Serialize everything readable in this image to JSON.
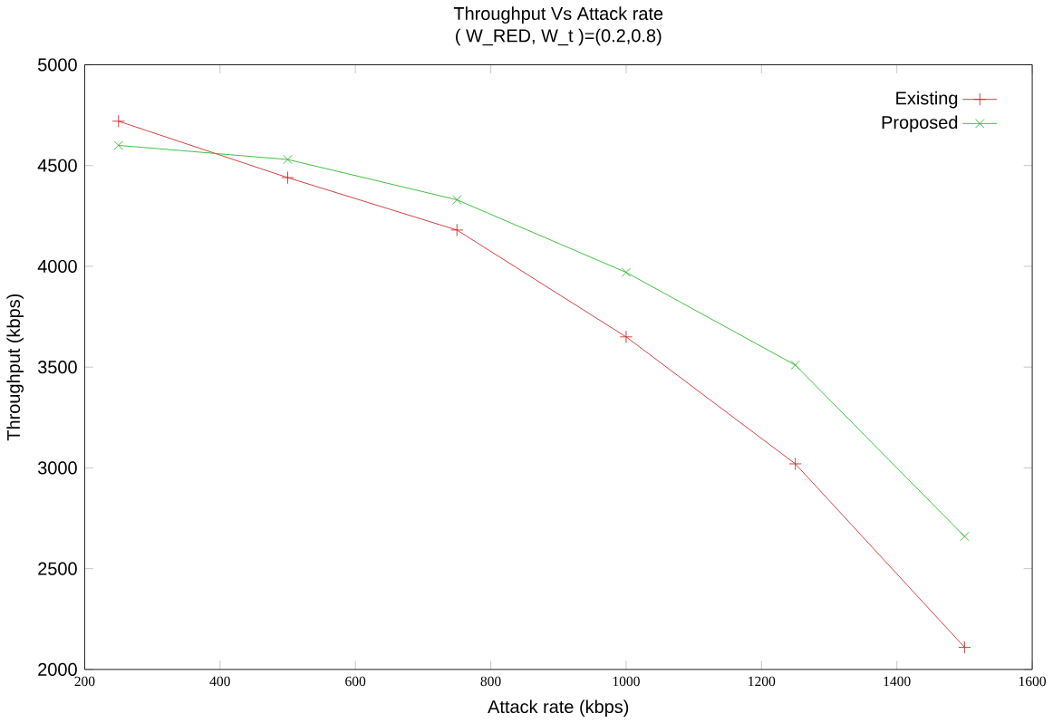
{
  "chart_data": {
    "type": "line",
    "title": "Throughput Vs Attack rate",
    "subtitle": "( W_RED, W_t )=(0.2,0.8)",
    "xlabel": "Attack rate (kbps)",
    "ylabel": "Throughput (kbps)",
    "x": [
      250,
      500,
      750,
      1000,
      1250,
      1500
    ],
    "series": [
      {
        "name": "Existing",
        "color": "#cc2a2a",
        "marker": "cross",
        "values": [
          4720,
          4440,
          4180,
          3650,
          3020,
          2110
        ]
      },
      {
        "name": "Proposed",
        "color": "#2ab82a",
        "marker": "cross",
        "values": [
          4600,
          4530,
          4330,
          3970,
          3510,
          2660
        ]
      }
    ],
    "xlim": [
      200,
      1600
    ],
    "xticks": [
      200,
      400,
      600,
      800,
      1000,
      1200,
      1400,
      1600
    ],
    "ylim": [
      2000,
      5000
    ],
    "yticks": [
      2000,
      2500,
      3000,
      3500,
      4000,
      4500,
      5000
    ],
    "grid": false,
    "legend": "top right",
    "line_style": "solid"
  }
}
